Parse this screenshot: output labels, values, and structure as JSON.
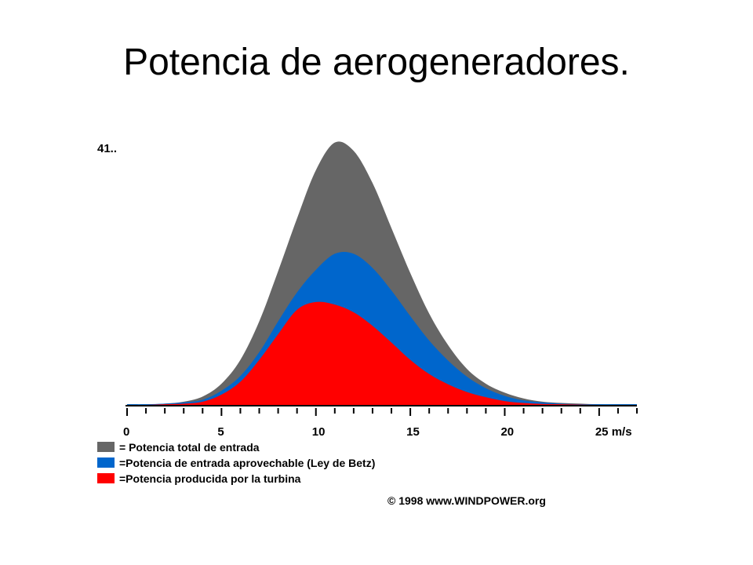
{
  "slide": {
    "title": "Potencia de aerogeneradores."
  },
  "chart_data": {
    "type": "area",
    "title": "",
    "xlabel": "",
    "ylabel": "",
    "y_axis_top_label": "41..",
    "x_unit": "m/s",
    "xlim": [
      0,
      27
    ],
    "ylim": [
      0,
      41
    ],
    "x_ticks": [
      0,
      5,
      10,
      15,
      20,
      25
    ],
    "x_tick_labels": [
      "0",
      "5",
      "10",
      "15",
      "20",
      "25 m/s"
    ],
    "grid": false,
    "legend_position": "bottom-left",
    "x": [
      0,
      1,
      2,
      3,
      4,
      5,
      6,
      7,
      8,
      9,
      10,
      11,
      12,
      13,
      14,
      15,
      16,
      17,
      18,
      19,
      20,
      21,
      22,
      23,
      24,
      25,
      26,
      27
    ],
    "series": [
      {
        "name": "= Potencia total de entrada",
        "color": "#666666",
        "values": [
          0.1,
          0.1,
          0.2,
          0.5,
          1.3,
          3.3,
          7.0,
          13.0,
          20.8,
          29.0,
          36.5,
          40.8,
          39.5,
          34.5,
          27.5,
          20.5,
          14.2,
          9.3,
          5.6,
          3.3,
          1.9,
          1.0,
          0.5,
          0.3,
          0.2,
          0.1,
          0.1,
          0.1
        ]
      },
      {
        "name": "=Potencia de entrada aprovechable (Ley de Betz)",
        "color": "#0066cc",
        "values": [
          0.1,
          0.1,
          0.2,
          0.4,
          0.8,
          2.2,
          4.5,
          8.2,
          13.0,
          17.5,
          21.0,
          23.5,
          23.5,
          21.3,
          17.8,
          13.8,
          10.0,
          6.9,
          4.4,
          2.6,
          1.4,
          0.7,
          0.4,
          0.2,
          0.1,
          0.1,
          0.1,
          0.1
        ]
      },
      {
        "name": "=Potencia producida por la turbina",
        "color": "#ff0000",
        "values": [
          0,
          0,
          0.1,
          0.2,
          0.5,
          1.6,
          3.6,
          7.0,
          11.0,
          14.8,
          16.0,
          15.6,
          14.4,
          12.3,
          9.7,
          7.0,
          4.8,
          3.2,
          2.0,
          1.2,
          0.6,
          0.3,
          0.15,
          0.1,
          0.05,
          0,
          0,
          0
        ]
      }
    ],
    "copyright": "© 1998 www.WINDPOWER.org"
  }
}
